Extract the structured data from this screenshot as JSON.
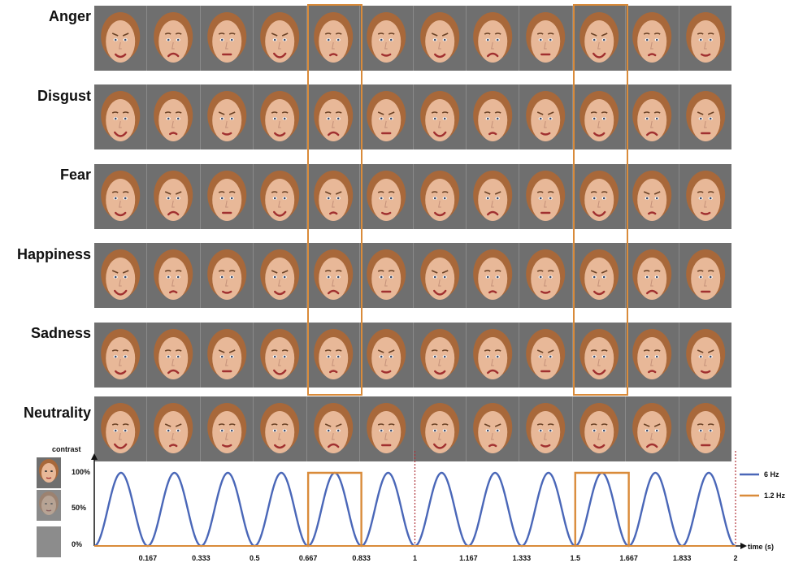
{
  "rows": [
    {
      "label": "Anger"
    },
    {
      "label": "Disgust"
    },
    {
      "label": "Fear"
    },
    {
      "label": "Happiness"
    },
    {
      "label": "Sadness"
    },
    {
      "label": "Neutrality"
    }
  ],
  "faces_per_row": 12,
  "highlighted_columns": [
    5,
    10
  ],
  "contrast_thumbnails": [
    {
      "icon": "face-full-contrast-icon",
      "level": 1.0
    },
    {
      "icon": "face-half-contrast-icon",
      "level": 0.5
    },
    {
      "icon": "blank-gray-icon",
      "level": 0.0
    }
  ],
  "colors": {
    "face_background": "#6f6f6f",
    "skin": "#e8b898",
    "hair": "#a8683a",
    "highlight": "#d98b3a",
    "wave_6hz": "#4a67b8",
    "wave_1_2hz": "#d98b3a",
    "period_marker": "#b0343a"
  },
  "chart_data": {
    "type": "line",
    "ylabel": "contrast",
    "xlabel": "time (s)",
    "y_ticks": [
      "100%",
      "50%",
      "0%"
    ],
    "x_ticks": [
      "0.167",
      "0.333",
      "0.5",
      "0.667",
      "0.833",
      "1",
      "1.167",
      "1.333",
      "1.5",
      "1.667",
      "1.833",
      "2"
    ],
    "x_tick_values": [
      0.167,
      0.333,
      0.5,
      0.667,
      0.833,
      1,
      1.167,
      1.333,
      1.5,
      1.667,
      1.833,
      2
    ],
    "xlim": [
      0,
      2
    ],
    "ylim": [
      0,
      1
    ],
    "period_markers": [
      1,
      2
    ],
    "series": [
      {
        "name": "6 Hz",
        "type": "sinusoid",
        "frequency": 6,
        "peak": 0.9
      },
      {
        "name": "1.2 Hz",
        "type": "square",
        "frequency": 1.2,
        "high_windows": [
          [
            0.667,
            0.833
          ],
          [
            1.5,
            1.667
          ]
        ],
        "peak": 0.9
      }
    ],
    "legend_position": "right"
  }
}
